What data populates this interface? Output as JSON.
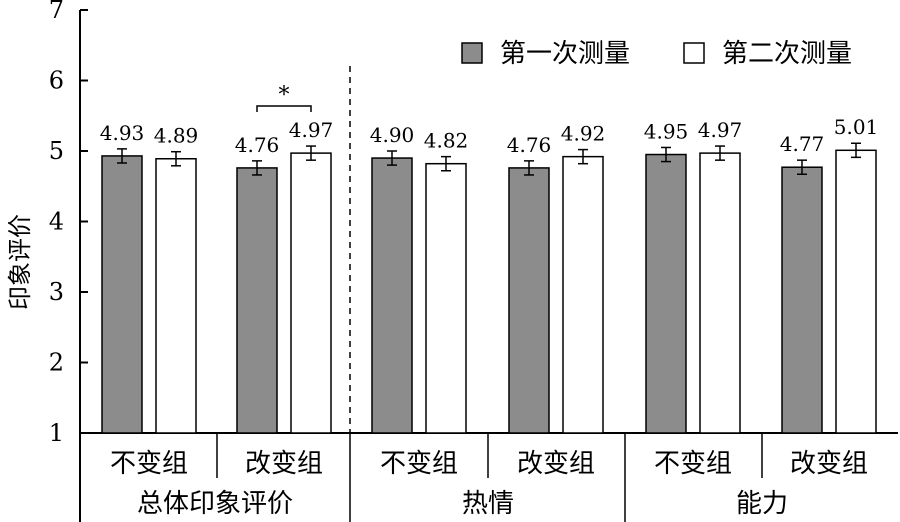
{
  "chart_data": {
    "type": "bar",
    "title": "",
    "ylabel": "印象评价",
    "ylim": [
      1,
      7
    ],
    "yticks": [
      "1",
      "2",
      "3",
      "4",
      "5",
      "6",
      "7"
    ],
    "categories": [
      "不变组",
      "改变组",
      "不变组",
      "改变组",
      "不变组",
      "改变组"
    ],
    "groups": [
      "总体印象评价",
      "热情",
      "能力"
    ],
    "series": [
      {
        "name": "第一次测量",
        "color": "#8c8c8c",
        "values": [
          4.93,
          4.76,
          4.9,
          4.76,
          4.95,
          4.77
        ],
        "labels": [
          "4.93",
          "4.76",
          "4.90",
          "4.76",
          "4.95",
          "4.77"
        ]
      },
      {
        "name": "第二次测量",
        "color": "#ffffff",
        "values": [
          4.89,
          4.97,
          4.82,
          4.92,
          4.97,
          5.01
        ],
        "labels": [
          "4.89",
          "4.97",
          "4.82",
          "4.92",
          "4.97",
          "5.01"
        ]
      }
    ],
    "error_bar": 0.1,
    "significance": [
      {
        "category_index": 1,
        "label": "*"
      }
    ],
    "legend_position": "top-right",
    "grid": false
  }
}
